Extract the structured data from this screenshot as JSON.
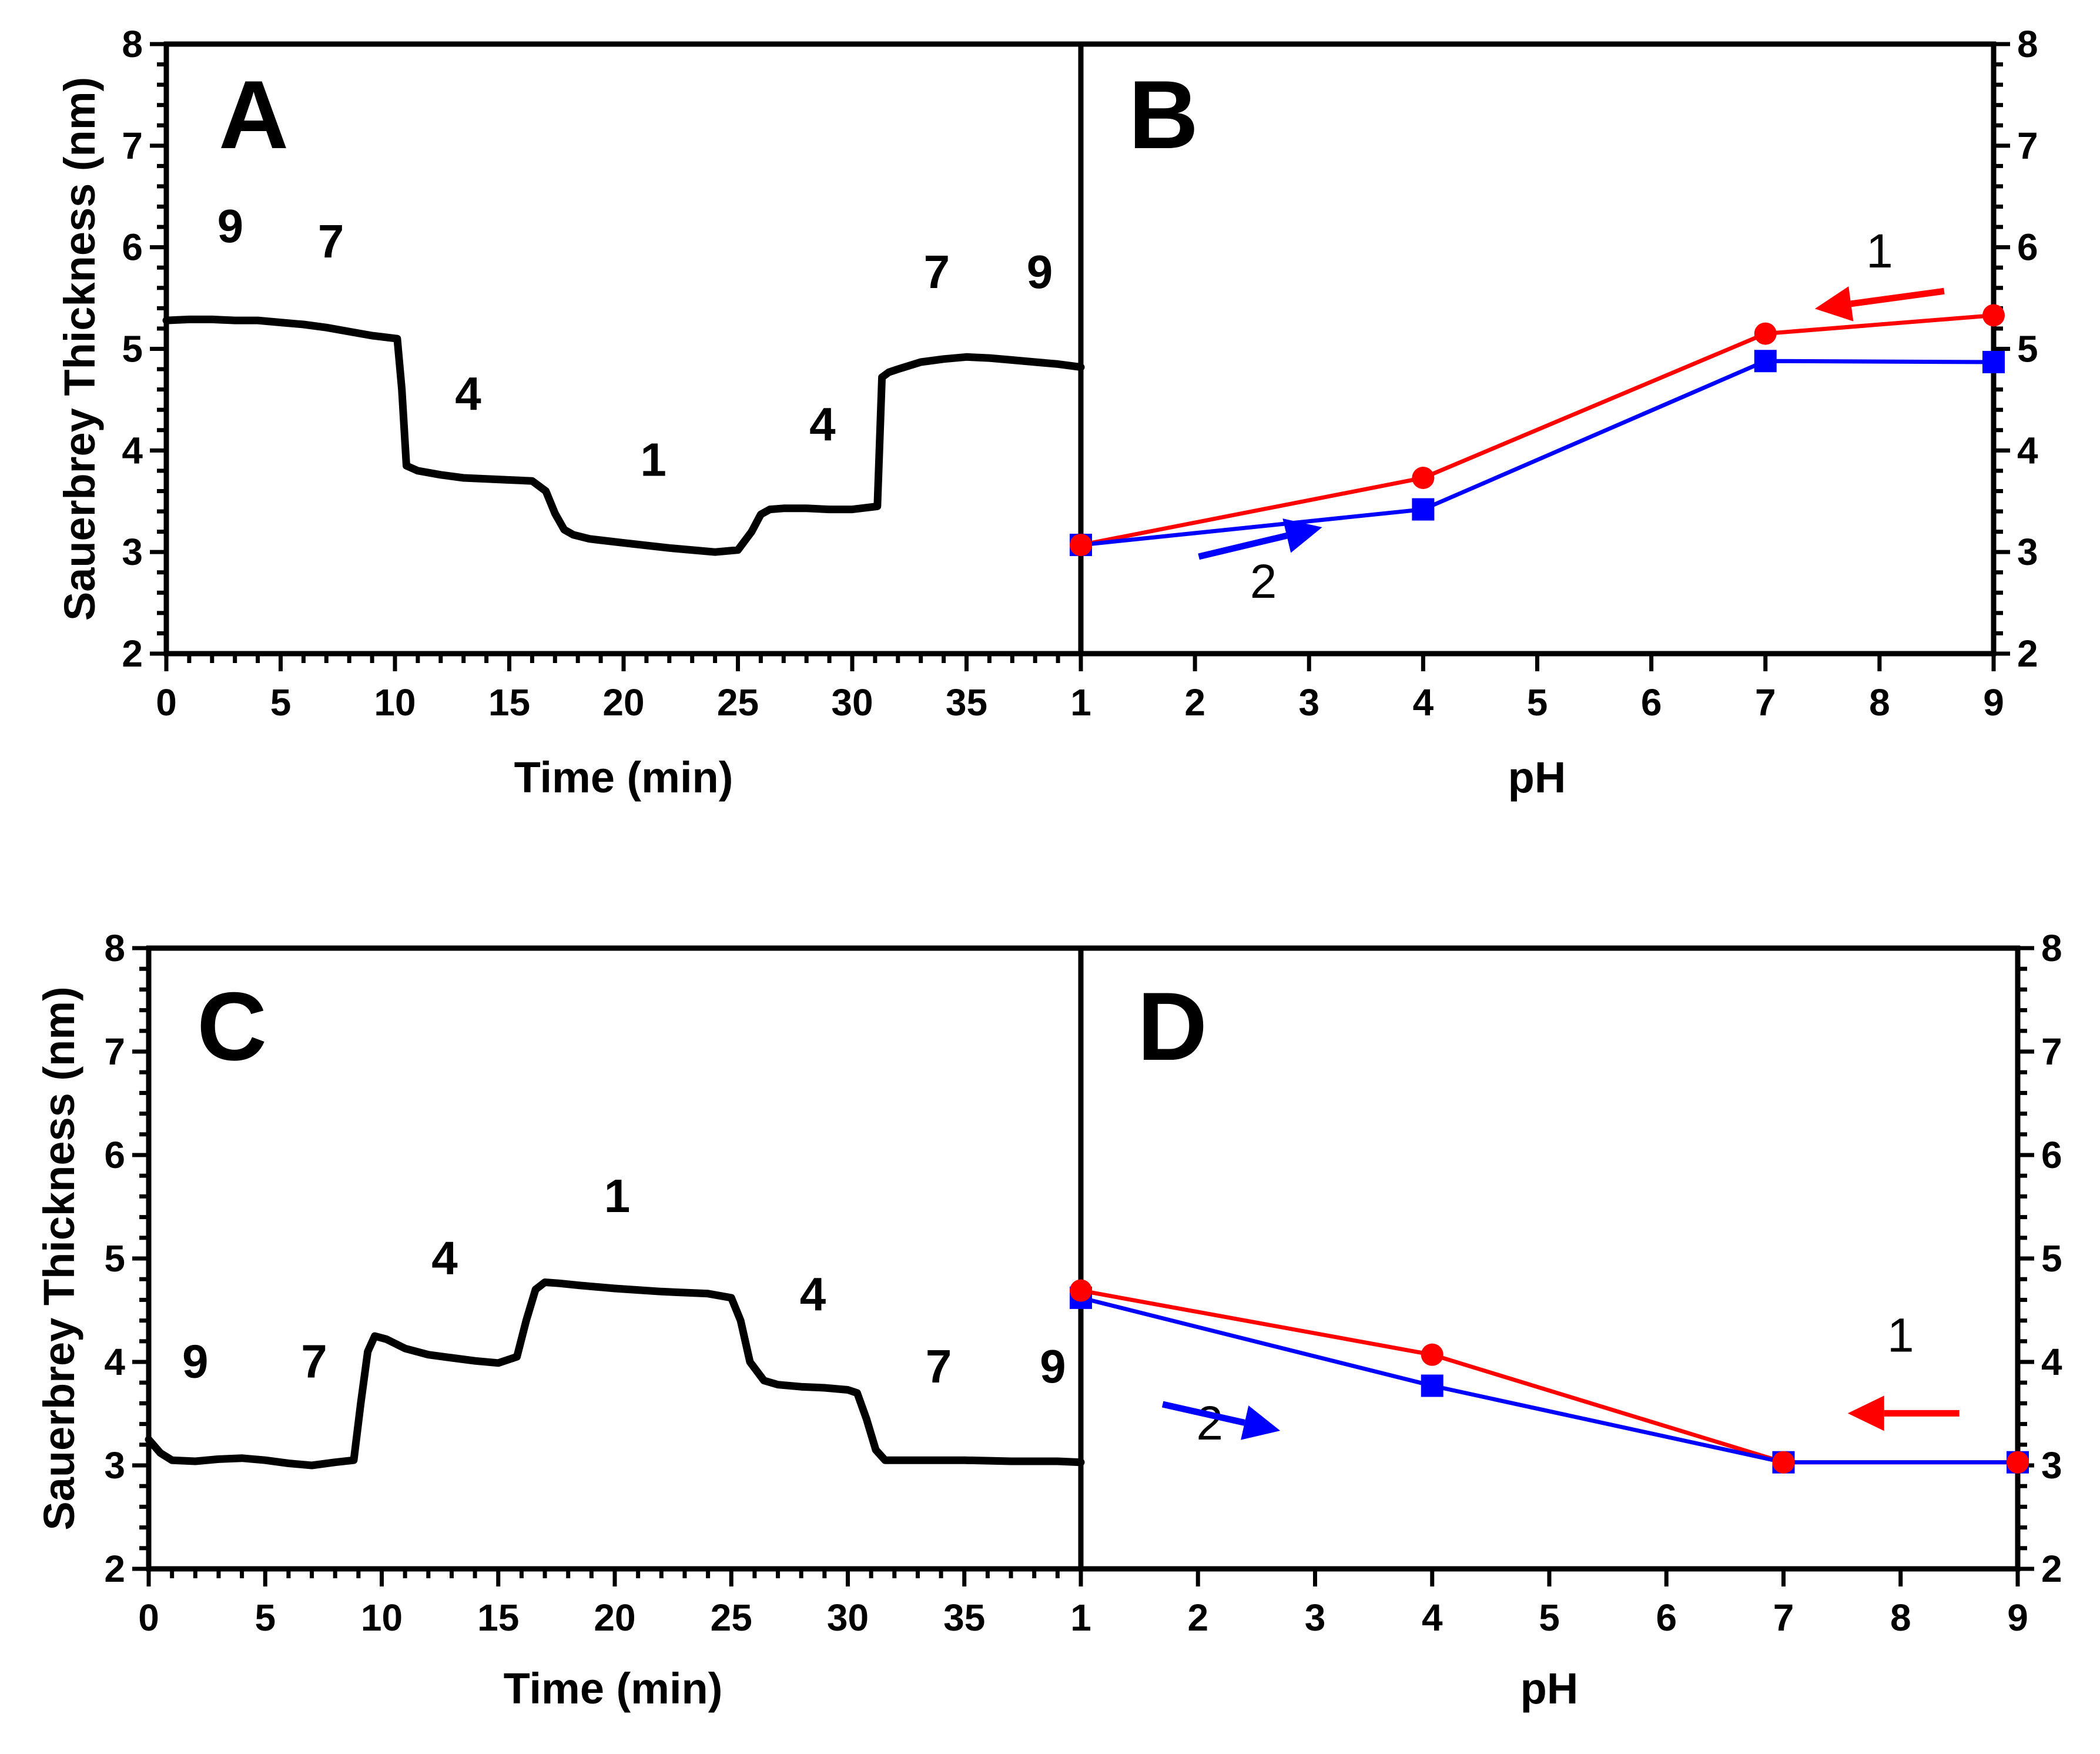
{
  "chart_data": [
    {
      "panel": "A",
      "type": "line",
      "xlabel": "Time (min)",
      "ylabel": "Sauerbrey Thickness (nm)",
      "xlim": [
        0,
        40
      ],
      "ylim": [
        2,
        8
      ],
      "xticks": [
        0,
        5,
        10,
        15,
        20,
        25,
        30,
        35
      ],
      "yticks": [
        2,
        3,
        4,
        5,
        6,
        7,
        8
      ],
      "series": [
        {
          "name": "thickness",
          "color": "#000000",
          "x": [
            0,
            1,
            2,
            3,
            4,
            5,
            6,
            7,
            8,
            9,
            10.1,
            10.3,
            10.5,
            11,
            12,
            13,
            14,
            15,
            16,
            16.6,
            17,
            17.4,
            17.8,
            18.5,
            20,
            22,
            24,
            25,
            25.6,
            26,
            26.4,
            27,
            28,
            29,
            30,
            31.1,
            31.3,
            31.6,
            32,
            33,
            34,
            35,
            36,
            37,
            38,
            39,
            40
          ],
          "y": [
            5.28,
            5.29,
            5.29,
            5.28,
            5.28,
            5.26,
            5.24,
            5.21,
            5.17,
            5.13,
            5.1,
            4.6,
            3.85,
            3.8,
            3.76,
            3.73,
            3.72,
            3.71,
            3.7,
            3.6,
            3.38,
            3.22,
            3.17,
            3.13,
            3.09,
            3.04,
            3.0,
            3.02,
            3.2,
            3.37,
            3.42,
            3.43,
            3.43,
            3.42,
            3.42,
            3.45,
            4.72,
            4.77,
            4.8,
            4.87,
            4.9,
            4.92,
            4.91,
            4.89,
            4.87,
            4.85,
            4.82
          ]
        }
      ],
      "annotations": [
        {
          "text": "9",
          "x": 2.8,
          "y": 6.05
        },
        {
          "text": "7",
          "x": 7.2,
          "y": 5.9
        },
        {
          "text": "4",
          "x": 13.2,
          "y": 4.4
        },
        {
          "text": "1",
          "x": 21.3,
          "y": 3.75
        },
        {
          "text": "4",
          "x": 28.7,
          "y": 4.1
        },
        {
          "text": "7",
          "x": 33.7,
          "y": 5.6
        },
        {
          "text": "9",
          "x": 38.2,
          "y": 5.6
        }
      ]
    },
    {
      "panel": "B",
      "type": "line",
      "xlabel": "pH",
      "ylabel": "",
      "xlim": [
        1,
        9
      ],
      "ylim": [
        2,
        8
      ],
      "xticks": [
        1,
        2,
        3,
        4,
        5,
        6,
        7,
        8,
        9
      ],
      "yticks": [
        2,
        3,
        4,
        5,
        6,
        7,
        8
      ],
      "series": [
        {
          "name": "1",
          "color": "#ff0000",
          "marker": "circle",
          "x": [
            9,
            7,
            4,
            1
          ],
          "y": [
            5.33,
            5.15,
            3.73,
            3.07
          ]
        },
        {
          "name": "2",
          "color": "#0000ff",
          "marker": "square",
          "x": [
            1,
            4,
            7,
            9
          ],
          "y": [
            3.07,
            3.42,
            4.88,
            4.87
          ]
        }
      ],
      "annotations": [
        {
          "text": "1",
          "x": 8.0,
          "y": 5.8,
          "color": "#ff0000",
          "arrow": "left"
        },
        {
          "text": "2",
          "x": 2.6,
          "y": 2.55,
          "color": "#0000ff",
          "arrow": "right"
        }
      ]
    },
    {
      "panel": "C",
      "type": "line",
      "xlabel": "Time (min)",
      "ylabel": "Sauerbrey Thickness (nm)",
      "xlim": [
        0,
        40
      ],
      "ylim": [
        2,
        8
      ],
      "xticks": [
        0,
        5,
        10,
        15,
        20,
        25,
        30,
        35
      ],
      "yticks": [
        2,
        3,
        4,
        5,
        6,
        7,
        8
      ],
      "series": [
        {
          "name": "thickness",
          "color": "#000000",
          "x": [
            0,
            0.5,
            1,
            2,
            3,
            4,
            5,
            6,
            7,
            8,
            8.8,
            9.1,
            9.4,
            9.7,
            10.2,
            11,
            12,
            13,
            14,
            15,
            15.8,
            16.2,
            16.6,
            17,
            17.6,
            18.5,
            20,
            22,
            24,
            25,
            25.4,
            25.8,
            26.4,
            27,
            28,
            29,
            30,
            30.4,
            30.8,
            31.2,
            31.6,
            33,
            35,
            37,
            39,
            40
          ],
          "y": [
            3.25,
            3.12,
            3.05,
            3.04,
            3.06,
            3.07,
            3.05,
            3.02,
            3.0,
            3.03,
            3.05,
            3.6,
            4.1,
            4.25,
            4.22,
            4.13,
            4.07,
            4.04,
            4.01,
            3.99,
            4.05,
            4.4,
            4.7,
            4.77,
            4.76,
            4.74,
            4.71,
            4.68,
            4.66,
            4.62,
            4.4,
            4.0,
            3.82,
            3.78,
            3.76,
            3.75,
            3.73,
            3.7,
            3.45,
            3.15,
            3.05,
            3.05,
            3.05,
            3.04,
            3.04,
            3.03
          ]
        }
      ],
      "annotations": [
        {
          "text": "9",
          "x": 2.0,
          "y": 3.85
        },
        {
          "text": "7",
          "x": 7.1,
          "y": 3.85
        },
        {
          "text": "4",
          "x": 12.7,
          "y": 4.85
        },
        {
          "text": "1",
          "x": 20.1,
          "y": 5.45
        },
        {
          "text": "4",
          "x": 28.5,
          "y": 4.5
        },
        {
          "text": "7",
          "x": 33.9,
          "y": 3.8
        },
        {
          "text": "9",
          "x": 38.8,
          "y": 3.8
        }
      ]
    },
    {
      "panel": "D",
      "type": "line",
      "xlabel": "pH",
      "ylabel": "",
      "xlim": [
        1,
        9
      ],
      "ylim": [
        2,
        8
      ],
      "xticks": [
        1,
        2,
        3,
        4,
        5,
        6,
        7,
        8,
        9
      ],
      "yticks": [
        2,
        3,
        4,
        5,
        6,
        7,
        8
      ],
      "series": [
        {
          "name": "1",
          "color": "#ff0000",
          "marker": "circle",
          "x": [
            9,
            7,
            4,
            1
          ],
          "y": [
            3.03,
            3.03,
            4.07,
            4.69
          ]
        },
        {
          "name": "2",
          "color": "#0000ff",
          "marker": "square",
          "x": [
            1,
            4,
            7,
            9
          ],
          "y": [
            4.62,
            3.77,
            3.03,
            3.03
          ]
        }
      ],
      "annotations": [
        {
          "text": "1",
          "x": 8.0,
          "y": 4.1,
          "color": "#ff0000",
          "arrow": "left"
        },
        {
          "text": "2",
          "x": 2.1,
          "y": 3.25,
          "color": "#0000ff",
          "arrow": "right"
        }
      ]
    }
  ]
}
